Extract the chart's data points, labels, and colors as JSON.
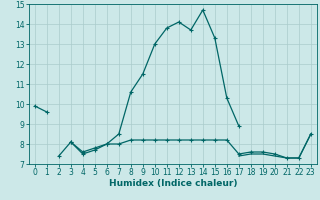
{
  "xlabel": "Humidex (Indice chaleur)",
  "x": [
    0,
    1,
    2,
    3,
    4,
    5,
    6,
    7,
    8,
    9,
    10,
    11,
    12,
    13,
    14,
    15,
    16,
    17,
    18,
    19,
    20,
    21,
    22,
    23
  ],
  "line1": [
    9.9,
    9.6,
    null,
    8.1,
    7.6,
    7.8,
    8.0,
    8.5,
    10.6,
    11.5,
    13.0,
    13.8,
    14.1,
    13.7,
    14.7,
    13.3,
    10.3,
    8.9,
    null,
    null,
    null,
    null,
    null,
    null
  ],
  "line2": [
    null,
    null,
    7.4,
    8.1,
    7.5,
    7.7,
    8.0,
    8.0,
    8.2,
    8.2,
    8.2,
    8.2,
    8.2,
    8.2,
    8.2,
    8.2,
    8.2,
    7.5,
    7.6,
    7.6,
    7.5,
    7.3,
    7.3,
    8.5
  ],
  "line3": [
    null,
    null,
    7.4,
    null,
    null,
    null,
    null,
    7.5,
    null,
    null,
    null,
    null,
    null,
    null,
    null,
    null,
    null,
    7.4,
    7.5,
    7.5,
    7.4,
    7.3,
    7.3,
    8.5
  ],
  "ylim": [
    7,
    15
  ],
  "xlim": [
    -0.5,
    23.5
  ],
  "yticks": [
    7,
    8,
    9,
    10,
    11,
    12,
    13,
    14,
    15
  ],
  "xticks": [
    0,
    1,
    2,
    3,
    4,
    5,
    6,
    7,
    8,
    9,
    10,
    11,
    12,
    13,
    14,
    15,
    16,
    17,
    18,
    19,
    20,
    21,
    22,
    23
  ],
  "line_color": "#006666",
  "bg_color": "#cce8e8",
  "grid_color": "#aacccc",
  "marker": "+",
  "markersize": 3,
  "linewidth": 0.9,
  "tick_fontsize": 5.5,
  "xlabel_fontsize": 6.5
}
